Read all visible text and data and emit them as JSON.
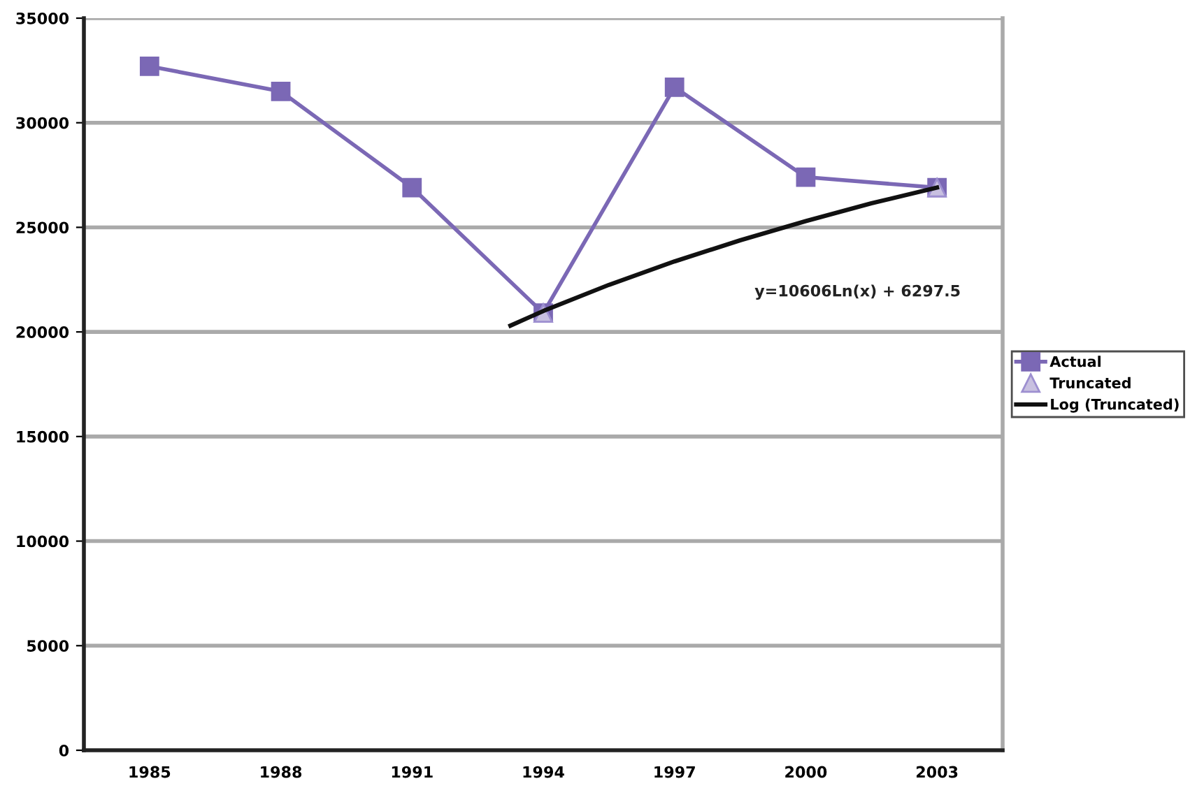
{
  "chart_data": {
    "type": "line",
    "x": [
      1985,
      1988,
      1991,
      1994,
      1997,
      2000,
      2003
    ],
    "xlim": [
      1983.5,
      2004.5
    ],
    "xticks": [
      1985,
      1988,
      1991,
      1994,
      1997,
      2000,
      2003
    ],
    "ylim": [
      0,
      35000
    ],
    "yticks": [
      0,
      5000,
      10000,
      15000,
      20000,
      25000,
      30000,
      35000
    ],
    "grid": "y",
    "legend": "right",
    "series": [
      {
        "name": "Actual",
        "color": "#7b68b5",
        "marker": "square",
        "values": [
          32700,
          31500,
          26900,
          20900,
          31700,
          27400,
          26900
        ]
      },
      {
        "name": "Truncated",
        "type": "scatter",
        "color": "#c8c0e0",
        "marker": "triangle",
        "values": [
          null,
          null,
          null,
          20900,
          null,
          null,
          26900
        ]
      },
      {
        "name": "Log (Truncated)",
        "color": "#111111",
        "marker": "none",
        "x": [
          1993.25,
          1994,
          1995.5,
          1997,
          1998.5,
          2000,
          2001.5,
          2003
        ],
        "values": [
          20300,
          21000,
          22250,
          23370,
          24380,
          25300,
          26150,
          26900
        ]
      }
    ],
    "annotations": [
      "y=10606Ln(x) + 6297.5"
    ]
  }
}
